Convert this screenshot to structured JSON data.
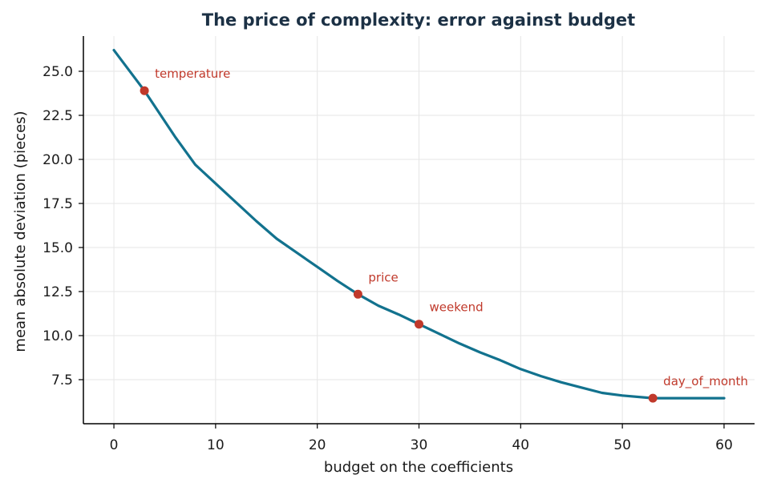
{
  "chart_data": {
    "type": "line",
    "title": "The price of complexity: error against budget",
    "xlabel": "budget on the coefficients",
    "ylabel": "mean absolute deviation (pieces)",
    "xlim": [
      -3,
      63
    ],
    "ylim": [
      5.0,
      27.0
    ],
    "xticks": [
      0,
      10,
      20,
      30,
      40,
      50,
      60
    ],
    "yticks": [
      7.5,
      10.0,
      12.5,
      15.0,
      17.5,
      20.0,
      22.5,
      25.0
    ],
    "grid": true,
    "series": [
      {
        "x": [
          0,
          3,
          6,
          8,
          11,
          14,
          16,
          18,
          20,
          22,
          24,
          26,
          28,
          30,
          32,
          34,
          36,
          38,
          40,
          42,
          44,
          46,
          48,
          50,
          53,
          55,
          60
        ],
        "values": [
          26.2,
          23.9,
          21.3,
          19.7,
          18.1,
          16.5,
          15.5,
          14.7,
          13.9,
          13.1,
          12.35,
          11.7,
          11.2,
          10.65,
          10.1,
          9.55,
          9.05,
          8.6,
          8.1,
          7.7,
          7.35,
          7.05,
          6.75,
          6.6,
          6.45,
          6.45,
          6.45
        ]
      }
    ],
    "annotations": [
      {
        "label": "temperature",
        "x": 3,
        "y": 23.9
      },
      {
        "label": "price",
        "x": 24,
        "y": 12.35
      },
      {
        "label": "weekend",
        "x": 30,
        "y": 10.65
      },
      {
        "label": "day_of_month",
        "x": 53,
        "y": 6.45
      }
    ],
    "colors": {
      "line": "#12728e",
      "marker": "#c0392b",
      "annotation_text": "#c0392b",
      "title": "#1c3145",
      "grid": "#e6e6e6",
      "axis": "#000000"
    }
  }
}
